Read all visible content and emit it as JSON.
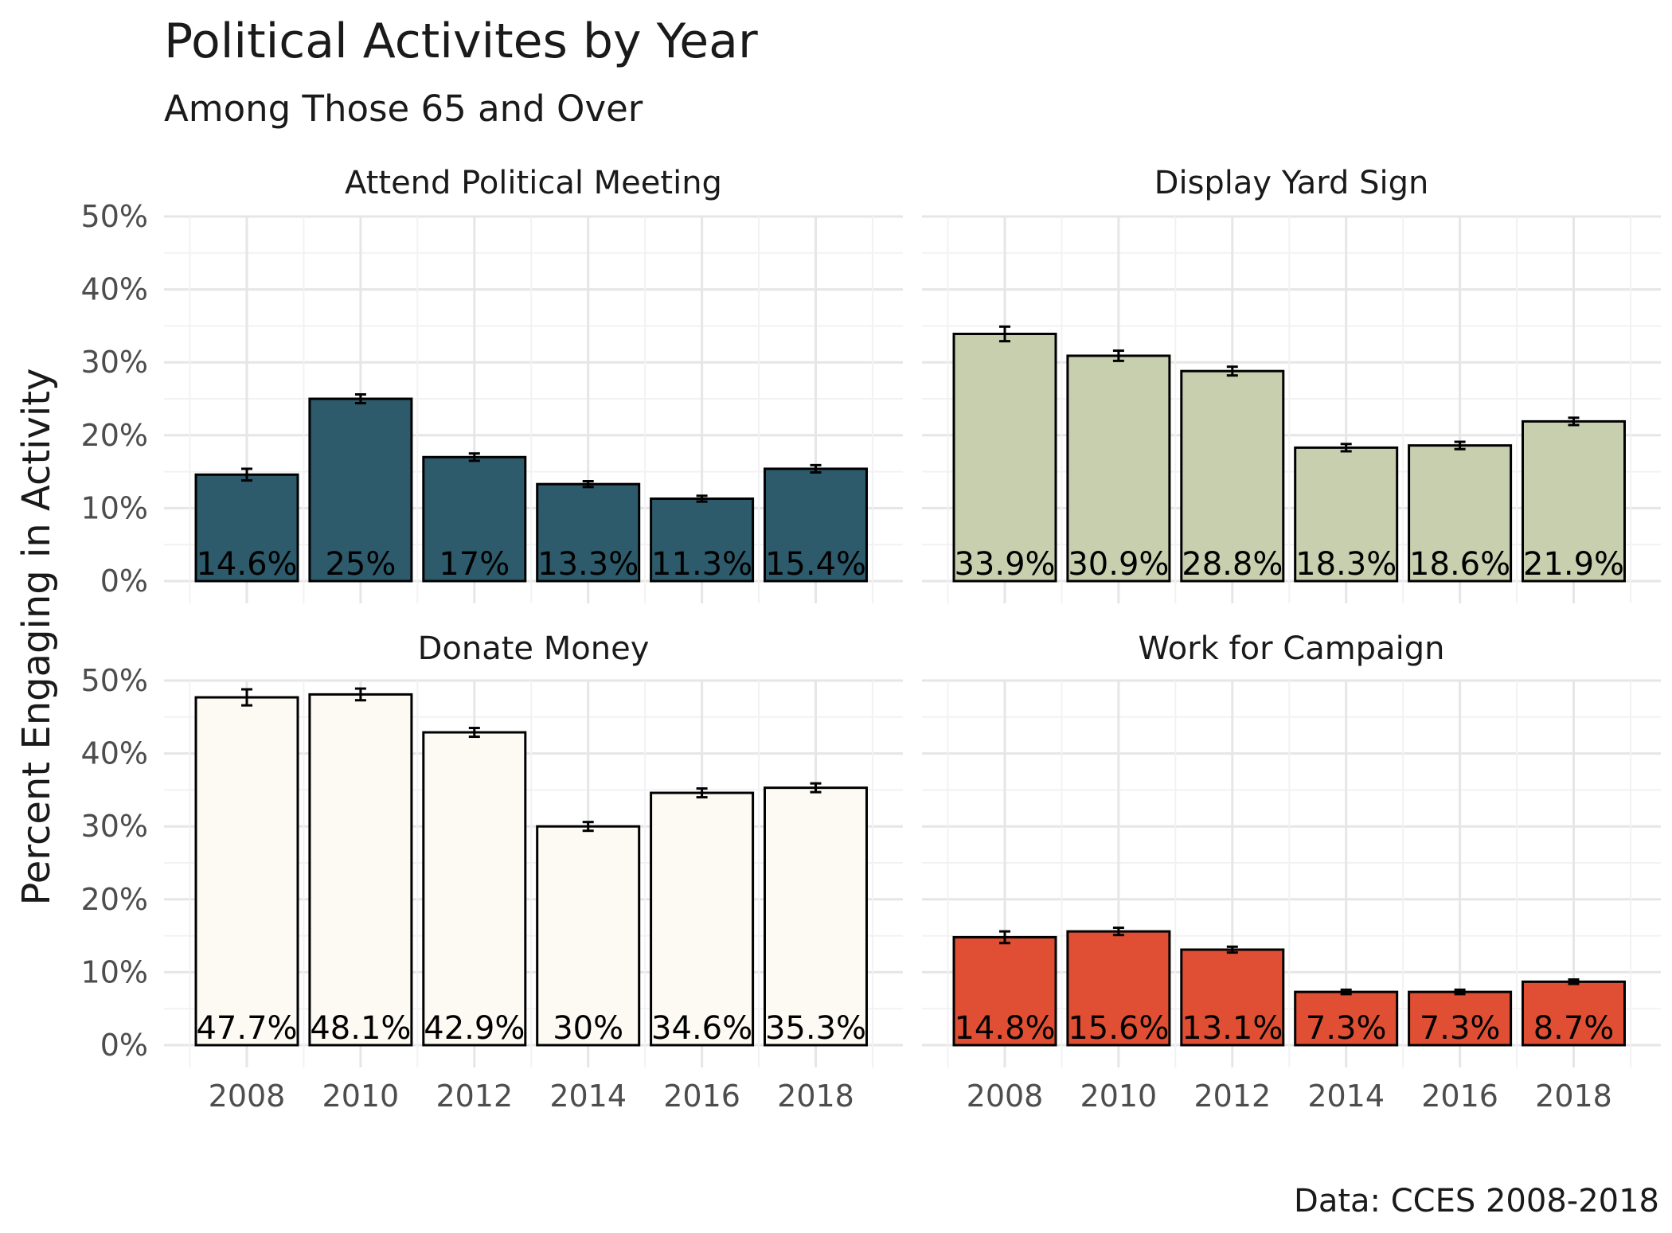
{
  "title": "Political Activites by Year",
  "subtitle": "Among Those 65 and Over",
  "ylabel": "Percent Engaging in Activity",
  "caption": "Data: CCES 2008-2018",
  "y_ticks": [
    "0%",
    "10%",
    "20%",
    "30%",
    "40%",
    "50%"
  ],
  "x_ticks": [
    "2008",
    "2010",
    "2012",
    "2014",
    "2016",
    "2018"
  ],
  "chart_data": {
    "type": "bar",
    "layout": "facet 2x2",
    "categories": [
      2008,
      2010,
      2012,
      2014,
      2016,
      2018
    ],
    "ylim": [
      0,
      50
    ],
    "grid": true,
    "error_bars": true,
    "panels": [
      {
        "title": "Attend Political Meeting",
        "color": "#2d5b6b",
        "values": [
          14.6,
          25,
          17,
          13.3,
          11.3,
          15.4
        ],
        "labels": [
          "14.6%",
          "25%",
          "17%",
          "13.3%",
          "11.3%",
          "15.4%"
        ],
        "errors": [
          0.8,
          0.6,
          0.5,
          0.4,
          0.4,
          0.5
        ]
      },
      {
        "title": "Display Yard Sign",
        "color": "#c8cfae",
        "values": [
          33.9,
          30.9,
          28.8,
          18.3,
          18.6,
          21.9
        ],
        "labels": [
          "33.9%",
          "30.9%",
          "28.8%",
          "18.3%",
          "18.6%",
          "21.9%"
        ],
        "errors": [
          1.0,
          0.7,
          0.6,
          0.5,
          0.5,
          0.5
        ]
      },
      {
        "title": "Donate Money",
        "color": "#fcfaf3",
        "values": [
          47.7,
          48.1,
          42.9,
          30,
          34.6,
          35.3
        ],
        "labels": [
          "47.7%",
          "48.1%",
          "42.9%",
          "30%",
          "34.6%",
          "35.3%"
        ],
        "errors": [
          1.1,
          0.8,
          0.6,
          0.6,
          0.6,
          0.6
        ]
      },
      {
        "title": "Work for Campaign",
        "color": "#e04f33",
        "values": [
          14.8,
          15.6,
          13.1,
          7.3,
          7.3,
          8.7
        ],
        "labels": [
          "14.8%",
          "15.6%",
          "13.1%",
          "7.3%",
          "7.3%",
          "8.7%"
        ],
        "errors": [
          0.8,
          0.5,
          0.4,
          0.3,
          0.3,
          0.3
        ]
      }
    ]
  }
}
